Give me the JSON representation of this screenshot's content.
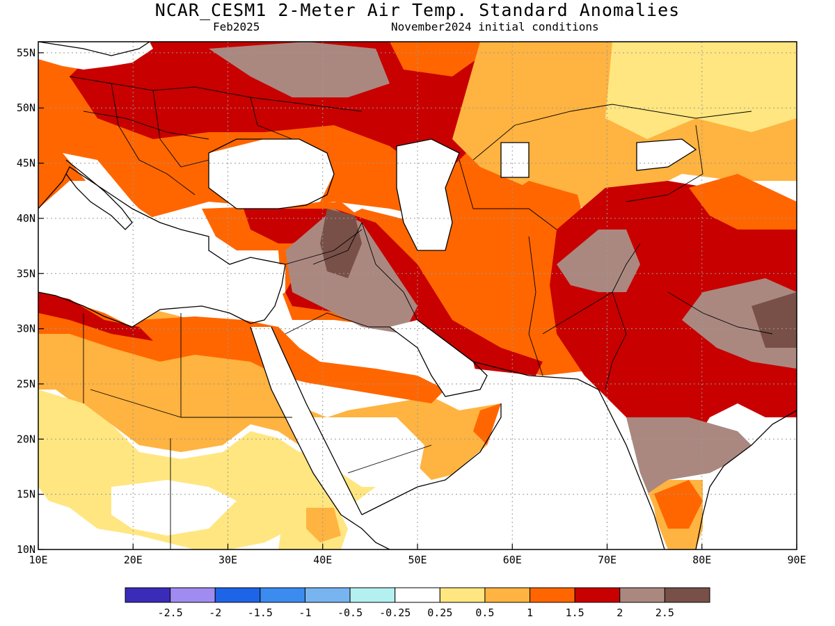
{
  "header": {
    "title": "NCAR_CESM1 2-Meter Air Temp. Standard Anomalies",
    "valid_month": "Feb2025",
    "init_conditions": "November2024 initial conditions"
  },
  "map": {
    "lon_range": [
      10,
      90
    ],
    "lat_range": [
      10,
      56
    ],
    "lon_ticks": [
      {
        "value": 10,
        "label": "10E"
      },
      {
        "value": 20,
        "label": "20E"
      },
      {
        "value": 30,
        "label": "30E"
      },
      {
        "value": 40,
        "label": "40E"
      },
      {
        "value": 50,
        "label": "50E"
      },
      {
        "value": 60,
        "label": "60E"
      },
      {
        "value": 70,
        "label": "70E"
      },
      {
        "value": 80,
        "label": "80E"
      },
      {
        "value": 90,
        "label": "90E"
      }
    ],
    "lat_ticks": [
      {
        "value": 10,
        "label": "10N"
      },
      {
        "value": 15,
        "label": "15N"
      },
      {
        "value": 20,
        "label": "20N"
      },
      {
        "value": 25,
        "label": "25N"
      },
      {
        "value": 30,
        "label": "30N"
      },
      {
        "value": 35,
        "label": "35N"
      },
      {
        "value": 40,
        "label": "40N"
      },
      {
        "value": 45,
        "label": "45N"
      },
      {
        "value": 50,
        "label": "50N"
      },
      {
        "value": 55,
        "label": "55N"
      }
    ],
    "grid": true,
    "colors": {
      "yellow": "#ffe680",
      "lightorange": "#ffb340",
      "orange": "#ff6600",
      "red": "#c80000",
      "brown": "#aa8880",
      "darkbrown": "#785048",
      "lightblue": "#a0ecf0",
      "blue": "#78b8f0",
      "medblue": "#3c90f0"
    }
  },
  "legend": {
    "colors": [
      "#3a2cb8",
      "#a08cf0",
      "#1e64e6",
      "#3c8cf0",
      "#78b4f0",
      "#b4f0f0",
      "#ffffff",
      "#ffe680",
      "#ffb340",
      "#ff6600",
      "#c80000",
      "#aa8880",
      "#785048"
    ],
    "labels": [
      "-2.5",
      "-2",
      "-1.5",
      "-1",
      "-0.5",
      "-0.25",
      "0.25",
      "0.5",
      "1",
      "1.5",
      "2",
      "2.5"
    ]
  }
}
